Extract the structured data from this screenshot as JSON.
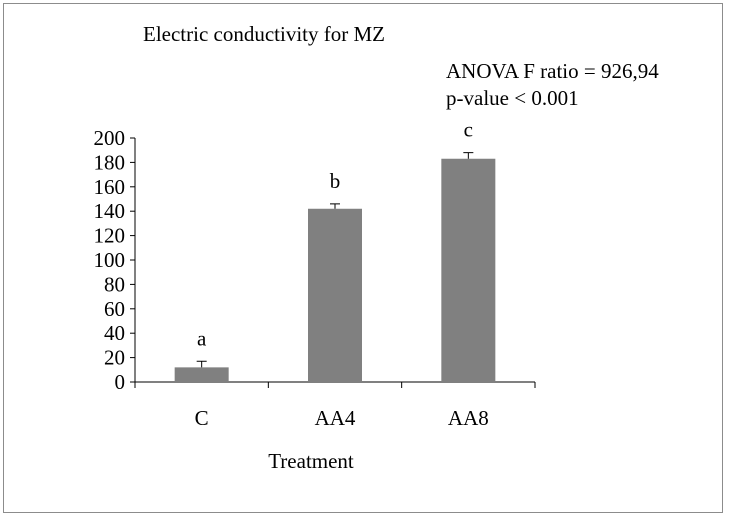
{
  "chart_data": {
    "type": "bar",
    "title": "Electric conductivity for MZ",
    "annotations": [
      "ANOVA F ratio = 926,94",
      "p-value < 0.001"
    ],
    "xlabel": "Treatment",
    "ylabel": "",
    "categories": [
      "C",
      "AA4",
      "AA8"
    ],
    "values": [
      12,
      142,
      183
    ],
    "error": [
      5,
      4,
      5
    ],
    "significance_letters": [
      "a",
      "b",
      "c"
    ],
    "ylim": [
      0,
      200
    ],
    "yticks": [
      0,
      20,
      40,
      60,
      80,
      100,
      120,
      140,
      160,
      180,
      200
    ],
    "grid": false,
    "legend": "none",
    "bar_color": "#808080"
  }
}
